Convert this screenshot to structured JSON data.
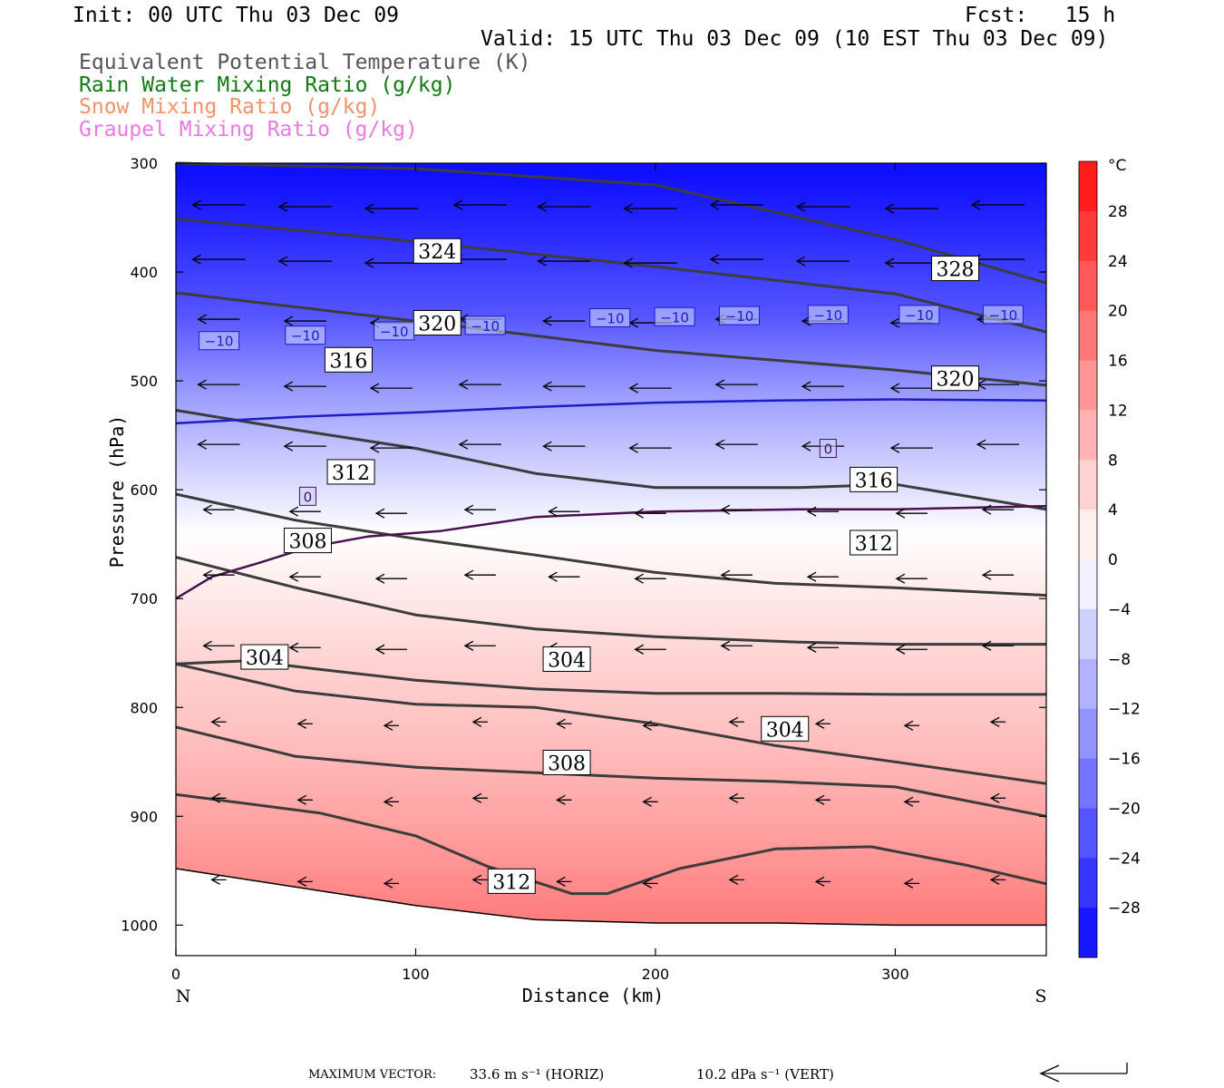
{
  "header": {
    "init": "Init: 00 UTC Thu 03 Dec 09",
    "fcst": "Fcst:   15 h",
    "valid": "Valid: 15 UTC Thu 03 Dec 09 (10 EST Thu 03 Dec 09)",
    "legend": [
      {
        "text": "Equivalent Potential Temperature (K)",
        "color": "#555555"
      },
      {
        "text": "Rain Water Mixing Ratio (g/kg)",
        "color": "#137a13"
      },
      {
        "text": "Snow Mixing Ratio (g/kg)",
        "color": "#f0926a"
      },
      {
        "text": "Graupel Mixing Ratio (g/kg)",
        "color": "#e87ae0"
      }
    ]
  },
  "chart_data": {
    "type": "contour",
    "xlabel": "Distance (km)",
    "ylabel": "Pressure (hPa)",
    "xlim": [
      0,
      363
    ],
    "ylim": [
      1028,
      300
    ],
    "y_scale": "linear-reversed",
    "x_ticks": [
      0,
      100,
      200,
      300
    ],
    "y_ticks": [
      300,
      400,
      500,
      600,
      700,
      800,
      900,
      1000
    ],
    "x_end_labels": {
      "left": "N",
      "right": "S"
    },
    "colorbar": {
      "unit": "°C",
      "ticks": [
        28,
        24,
        20,
        16,
        12,
        8,
        4,
        0,
        -4,
        -8,
        -12,
        -16,
        -20,
        -24,
        -28
      ],
      "tick_labels": [
        "28",
        "24",
        "20",
        "16",
        "12",
        "8",
        "4",
        "0",
        "−4",
        "−8",
        "−12",
        "−16",
        "−20",
        "−24",
        "−28"
      ],
      "range": [
        -32,
        32
      ]
    },
    "temperature_bands": [
      {
        "p": 310,
        "t": -31
      },
      {
        "p": 360,
        "t": -28
      },
      {
        "p": 400,
        "t": -25
      },
      {
        "p": 440,
        "t": -22
      },
      {
        "p": 480,
        "t": -17
      },
      {
        "p": 520,
        "t": -12
      },
      {
        "p": 560,
        "t": -8
      },
      {
        "p": 600,
        "t": -4
      },
      {
        "p": 640,
        "t": 0
      },
      {
        "p": 700,
        "t": 3
      },
      {
        "p": 760,
        "t": 6
      },
      {
        "p": 820,
        "t": 8
      },
      {
        "p": 880,
        "t": 11
      },
      {
        "p": 940,
        "t": 14
      },
      {
        "p": 990,
        "t": 17
      }
    ],
    "theta_e": [
      {
        "label": "328",
        "x": [
          0,
          100,
          200,
          300,
          363
        ],
        "p": [
          300,
          305,
          320,
          370,
          410
        ],
        "label_at": [
          325,
          397
        ]
      },
      {
        "label": "324",
        "x": [
          0,
          100,
          200,
          300,
          363
        ],
        "p": [
          351,
          372,
          395,
          420,
          455
        ],
        "label_at": [
          109,
          381
        ]
      },
      {
        "label": "320",
        "x": [
          0,
          100,
          200,
          300,
          363
        ],
        "p": [
          419,
          445,
          472,
          490,
          504
        ],
        "label_at": [
          109,
          447
        ]
      },
      {
        "label": "320",
        "x": [
          0,
          100,
          200,
          300,
          363
        ],
        "p": [
          419,
          445,
          472,
          490,
          504
        ],
        "label_at": [
          325,
          498
        ]
      },
      {
        "label": "316",
        "x": [
          0,
          50,
          100,
          150,
          200,
          260,
          300,
          363
        ],
        "p": [
          527,
          545,
          562,
          585,
          598,
          598,
          595,
          618
        ],
        "label_at": [
          72,
          481
        ]
      },
      {
        "label": "316",
        "x": [
          0,
          50,
          100,
          150,
          200,
          260,
          300,
          363
        ],
        "p": [
          527,
          545,
          562,
          585,
          598,
          598,
          595,
          618
        ],
        "label_at": [
          291,
          591
        ]
      },
      {
        "label": "312",
        "x": [
          0,
          50,
          100,
          150,
          200,
          250,
          300,
          363
        ],
        "p": [
          604,
          628,
          645,
          660,
          676,
          686,
          690,
          697
        ],
        "label_at": [
          73,
          584
        ]
      },
      {
        "label": "312",
        "x": [
          0,
          50,
          100,
          150,
          200,
          250,
          300,
          363
        ],
        "p": [
          604,
          628,
          645,
          660,
          676,
          686,
          690,
          697
        ],
        "label_at": [
          291,
          649
        ]
      },
      {
        "label": "308",
        "x": [
          0,
          50,
          100,
          150,
          200,
          260,
          300,
          363
        ],
        "p": [
          662,
          690,
          715,
          728,
          735,
          740,
          742,
          742
        ],
        "label_at": [
          55,
          647
        ]
      },
      {
        "label": "304",
        "x": [
          0,
          30,
          60,
          100,
          150,
          200,
          250,
          300,
          363
        ],
        "p": [
          760,
          757,
          765,
          775,
          783,
          787,
          787,
          788,
          788
        ],
        "label_at": [
          37,
          754
        ]
      },
      {
        "label": "304",
        "x": [
          0,
          30,
          60,
          100,
          150,
          200,
          250,
          300,
          363
        ],
        "p": [
          760,
          757,
          765,
          775,
          783,
          787,
          787,
          788,
          788
        ],
        "label_at": [
          163,
          756
        ]
      },
      {
        "label": "304",
        "x": [
          0,
          50,
          100,
          150,
          200,
          250,
          300,
          363
        ],
        "p": [
          760,
          785,
          797,
          800,
          815,
          835,
          850,
          870
        ],
        "label_at": [
          254,
          820
        ]
      },
      {
        "label": "308",
        "x": [
          0,
          50,
          100,
          150,
          200,
          250,
          300,
          363
        ],
        "p": [
          818,
          845,
          855,
          860,
          865,
          868,
          873,
          900
        ],
        "label_at": [
          163,
          851
        ]
      },
      {
        "label": "312",
        "x": [
          0,
          60,
          100,
          130,
          165,
          180,
          210,
          250,
          290,
          330,
          363
        ],
        "p": [
          880,
          897,
          918,
          946,
          971,
          971,
          948,
          930,
          928,
          945,
          962
        ],
        "label_at": [
          140,
          960
        ]
      }
    ],
    "isotherms": [
      {
        "label": "−10",
        "x": [
          0,
          50,
          100,
          150,
          200,
          250,
          300,
          363
        ],
        "p": [
          539,
          533,
          529,
          524,
          520,
          518,
          517,
          518
        ],
        "color": "#1c1cc8",
        "labels_at": [
          [
            18,
            463
          ],
          [
            54,
            458
          ],
          [
            91,
            454
          ],
          [
            129,
            449
          ],
          [
            181,
            442
          ],
          [
            208,
            441
          ],
          [
            235,
            440
          ],
          [
            272,
            439
          ],
          [
            310,
            439
          ],
          [
            345,
            439
          ]
        ]
      },
      {
        "label": "0",
        "x": [
          0,
          15,
          35,
          55,
          80,
          110,
          150,
          200,
          260,
          300,
          363
        ],
        "p": [
          700,
          680,
          667,
          653,
          643,
          638,
          625,
          620,
          618,
          618,
          615
        ],
        "color": "#4a1050",
        "labels_at": [
          [
            55,
            606
          ],
          [
            272,
            562
          ]
        ]
      }
    ],
    "wind_rows_p": [
      340,
      390,
      445,
      505,
      560,
      620,
      680,
      745,
      815,
      885,
      960
    ],
    "wind_cols_x": [
      18,
      54,
      90,
      127,
      162,
      198,
      234,
      270,
      307,
      343
    ],
    "ground": {
      "x": [
        0,
        50,
        100,
        150,
        200,
        250,
        300,
        363
      ],
      "p": [
        948,
        965,
        982,
        995,
        998,
        998,
        1000,
        1000
      ]
    }
  },
  "footer": {
    "max_vector_label": "MAXIMUM VECTOR:",
    "horiz": "33.6 m s⁻¹ (HORIZ)",
    "vert": "10.2 dPa s⁻¹ (VERT)"
  }
}
